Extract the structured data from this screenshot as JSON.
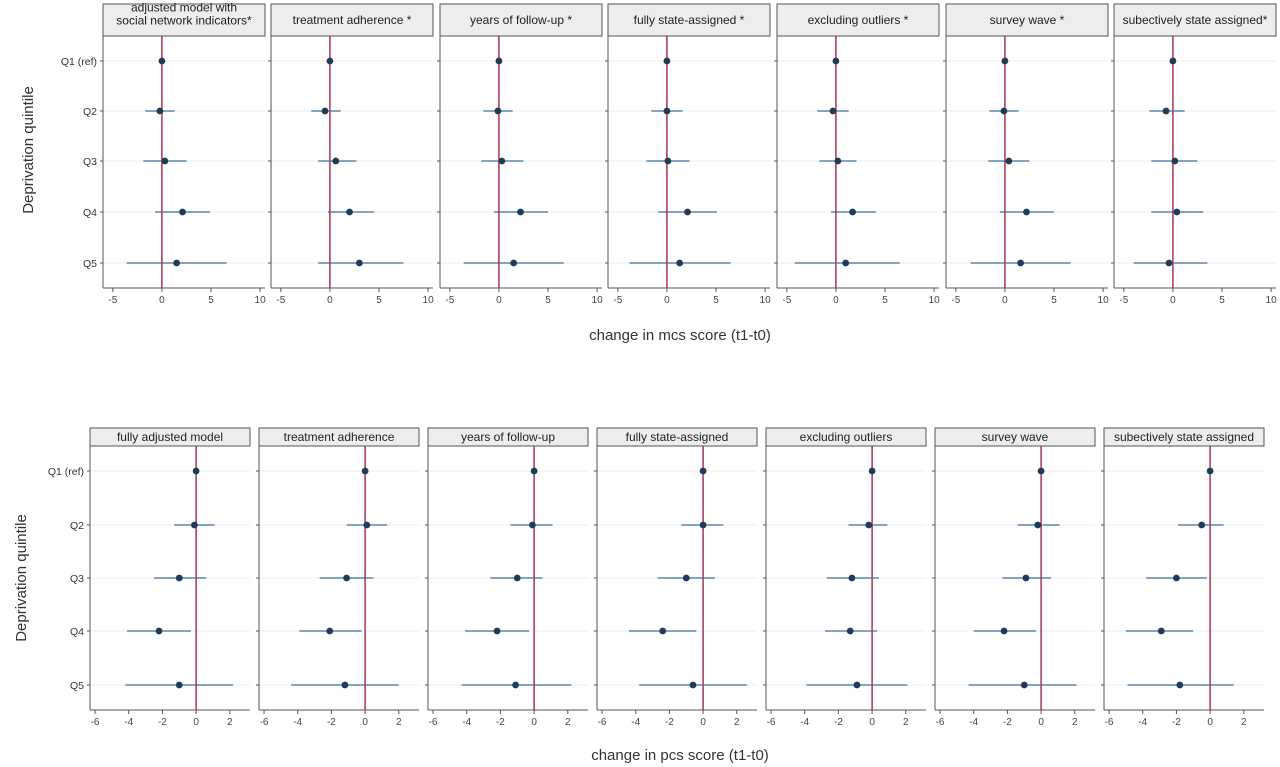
{
  "chart_data": [
    {
      "type": "scatter",
      "xlabel": "change in mcs score (t1-t0)",
      "ylabel": "Deprivation quintile",
      "categories": [
        "Q1 (ref)",
        "Q2",
        "Q3",
        "Q4",
        "Q5"
      ],
      "xlim": [
        -6,
        10.5
      ],
      "xticks": [
        -5,
        0,
        5,
        10
      ],
      "reference_line": 0,
      "panels": [
        {
          "name": "adjusted model with social network indicators*",
          "estimates": [
            0,
            -0.2,
            0.3,
            2.1,
            1.5
          ],
          "ci_low": [
            0,
            -1.7,
            -1.9,
            -0.7,
            -3.6
          ],
          "ci_high": [
            0,
            1.3,
            2.5,
            4.9,
            6.6
          ]
        },
        {
          "name": "treatment adherence *",
          "estimates": [
            0,
            -0.5,
            0.6,
            2.0,
            3.0
          ],
          "ci_low": [
            0,
            -1.9,
            -1.2,
            -0.2,
            -1.2
          ],
          "ci_high": [
            0,
            1.1,
            2.7,
            4.5,
            7.5
          ]
        },
        {
          "name": "years of follow-up *",
          "estimates": [
            0,
            -0.1,
            0.3,
            2.2,
            1.5
          ],
          "ci_low": [
            0,
            -1.6,
            -1.8,
            -0.5,
            -3.6
          ],
          "ci_high": [
            0,
            1.4,
            2.5,
            5.0,
            6.6
          ]
        },
        {
          "name": "fully state-assigned *",
          "estimates": [
            0,
            0,
            0.1,
            2.1,
            1.3
          ],
          "ci_low": [
            0,
            -1.6,
            -2.1,
            -0.9,
            -3.8
          ],
          "ci_high": [
            0,
            1.6,
            2.3,
            5.1,
            6.5
          ]
        },
        {
          "name": "excluding outliers *",
          "estimates": [
            0,
            -0.3,
            0.2,
            1.7,
            1.0
          ],
          "ci_low": [
            0,
            -1.9,
            -1.7,
            -0.5,
            -4.2
          ],
          "ci_high": [
            0,
            1.3,
            2.1,
            4.1,
            6.5
          ]
        },
        {
          "name": "survey wave *",
          "estimates": [
            0,
            -0.1,
            0.4,
            2.2,
            1.6
          ],
          "ci_low": [
            0,
            -1.6,
            -1.7,
            -0.5,
            -3.5
          ],
          "ci_high": [
            0,
            1.4,
            2.5,
            5.0,
            6.7
          ]
        },
        {
          "name": "subectively state assigned*",
          "estimates": [
            0,
            -0.7,
            0.2,
            0.4,
            -0.4
          ],
          "ci_low": [
            0,
            -2.4,
            -2.2,
            -2.2,
            -4.0
          ],
          "ci_high": [
            0,
            1.2,
            2.5,
            3.1,
            3.5
          ]
        }
      ]
    },
    {
      "type": "scatter",
      "xlabel": "change in pcs score (t1-t0)",
      "ylabel": "Deprivation quintile",
      "categories": [
        "Q1 (ref)",
        "Q2",
        "Q3",
        "Q4",
        "Q5"
      ],
      "xlim": [
        -6.3,
        3.2
      ],
      "xticks": [
        -6,
        -4,
        -2,
        0,
        2
      ],
      "reference_line": 0,
      "panels": [
        {
          "name": "fully adjusted model",
          "estimates": [
            0,
            -0.1,
            -1.0,
            -2.2,
            -1.0
          ],
          "ci_low": [
            0,
            -1.3,
            -2.5,
            -4.1,
            -4.2
          ],
          "ci_high": [
            0,
            1.1,
            0.6,
            -0.3,
            2.2
          ]
        },
        {
          "name": "treatment adherence",
          "estimates": [
            0,
            0.1,
            -1.1,
            -2.1,
            -1.2
          ],
          "ci_low": [
            0,
            -1.1,
            -2.7,
            -3.9,
            -4.4
          ],
          "ci_high": [
            0,
            1.3,
            0.5,
            -0.2,
            2.0
          ]
        },
        {
          "name": "years of follow-up",
          "estimates": [
            0,
            -0.1,
            -1.0,
            -2.2,
            -1.1
          ],
          "ci_low": [
            0,
            -1.4,
            -2.6,
            -4.1,
            -4.3
          ],
          "ci_high": [
            0,
            1.1,
            0.5,
            -0.3,
            2.2
          ]
        },
        {
          "name": "fully state-assigned",
          "estimates": [
            0,
            0,
            -1.0,
            -2.4,
            -0.6
          ],
          "ci_low": [
            0,
            -1.3,
            -2.7,
            -4.4,
            -3.8
          ],
          "ci_high": [
            0,
            1.2,
            0.7,
            -0.4,
            2.6
          ]
        },
        {
          "name": "excluding outliers",
          "estimates": [
            0,
            -0.2,
            -1.2,
            -1.3,
            -0.9
          ],
          "ci_low": [
            0,
            -1.4,
            -2.7,
            -2.8,
            -3.9
          ],
          "ci_high": [
            0,
            0.9,
            0.4,
            0.3,
            2.1
          ]
        },
        {
          "name": "survey wave",
          "estimates": [
            0,
            -0.2,
            -0.9,
            -2.2,
            -1.0
          ],
          "ci_low": [
            0,
            -1.4,
            -2.3,
            -4.0,
            -4.3
          ],
          "ci_high": [
            0,
            1.1,
            0.6,
            -0.3,
            2.1
          ]
        },
        {
          "name": "subectively state assigned",
          "estimates": [
            0,
            -0.5,
            -2.0,
            -2.9,
            -1.8
          ],
          "ci_low": [
            0,
            -1.9,
            -3.8,
            -5.0,
            -4.9
          ],
          "ci_high": [
            0,
            0.8,
            -0.2,
            -1.0,
            1.4
          ]
        }
      ]
    }
  ],
  "colors": {
    "point": "#1f3b5a",
    "ci_line": "#3c6e9e",
    "ref_line": "#a8234a",
    "axis": "#555555",
    "strip_fill": "#ededed",
    "strip_border": "#555555",
    "grid": "#eeeeee"
  }
}
